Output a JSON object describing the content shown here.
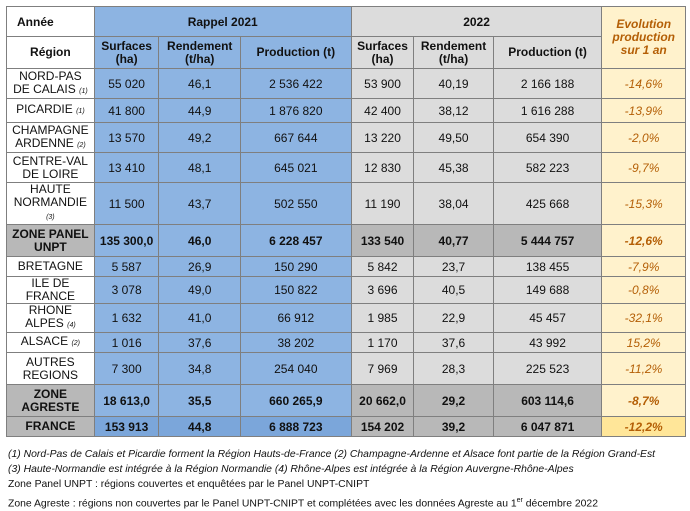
{
  "header": {
    "annee": "Année",
    "year_2021": "Rappel 2021",
    "year_2022": "2022",
    "evolution": "Evolution production sur 1 an",
    "region": "Région",
    "surfaces": "Surfaces (ha)",
    "rendement": "Rendement (t/ha)",
    "production": "Production (t)"
  },
  "rows": [
    {
      "region": "NORD-PAS DE CALAIS",
      "fn": "(1)",
      "s21": "55 020",
      "r21": "46,1",
      "p21": "2 536 422",
      "s22": "53 900",
      "r22": "40,19",
      "p22": "2 166 188",
      "evo": "-14,6%"
    },
    {
      "region": "PICARDIE",
      "fn": "(1)",
      "s21": "41 800",
      "r21": "44,9",
      "p21": "1 876 820",
      "s22": "42 400",
      "r22": "38,12",
      "p22": "1 616 288",
      "evo": "-13,9%"
    },
    {
      "region": "CHAMPAGNE ARDENNE",
      "fn": "(2)",
      "s21": "13 570",
      "r21": "49,2",
      "p21": "667 644",
      "s22": "13 220",
      "r22": "49,50",
      "p22": "654 390",
      "evo": "-2,0%"
    },
    {
      "region": "CENTRE-VAL DE LOIRE",
      "fn": "",
      "s21": "13 410",
      "r21": "48,1",
      "p21": "645 021",
      "s22": "12 830",
      "r22": "45,38",
      "p22": "582 223",
      "evo": "-9,7%"
    },
    {
      "region": "HAUTE NORMANDIE",
      "fn": "(3)",
      "s21": "11 500",
      "r21": "43,7",
      "p21": "502 550",
      "s22": "11 190",
      "r22": "38,04",
      "p22": "425 668",
      "evo": "-15,3%"
    },
    {
      "region": "ZONE PANEL UNPT",
      "fn": "",
      "s21": "135 300,0",
      "r21": "46,0",
      "p21": "6 228 457",
      "s22": "133 540",
      "r22": "40,77",
      "p22": "5 444 757",
      "evo": "-12,6%",
      "total": true
    },
    {
      "region": "BRETAGNE",
      "fn": "",
      "s21": "5 587",
      "r21": "26,9",
      "p21": "150 290",
      "s22": "5 842",
      "r22": "23,7",
      "p22": "138 455",
      "evo": "-7,9%"
    },
    {
      "region": "ILE DE FRANCE",
      "fn": "",
      "s21": "3 078",
      "r21": "49,0",
      "p21": "150 822",
      "s22": "3 696",
      "r22": "40,5",
      "p22": "149 688",
      "evo": "-0,8%"
    },
    {
      "region": "RHONE ALPES",
      "fn": "(4)",
      "s21": "1 632",
      "r21": "41,0",
      "p21": "66 912",
      "s22": "1 985",
      "r22": "22,9",
      "p22": "45 457",
      "evo": "-32,1%"
    },
    {
      "region": "ALSACE",
      "fn": "(2)",
      "s21": "1 016",
      "r21": "37,6",
      "p21": "38 202",
      "s22": "1 170",
      "r22": "37,6",
      "p22": "43 992",
      "evo": "15,2%"
    },
    {
      "region": "AUTRES REGIONS",
      "fn": "",
      "s21": "7 300",
      "r21": "34,8",
      "p21": "254 040",
      "s22": "7 969",
      "r22": "28,3",
      "p22": "225 523",
      "evo": "-11,2%"
    },
    {
      "region": "ZONE AGRESTE",
      "fn": "",
      "s21": "18 613,0",
      "r21": "35,5",
      "p21": "660 265,9",
      "s22": "20 662,0",
      "r22": "29,2",
      "p22": "603 114,6",
      "evo": "-8,7%",
      "total": true
    },
    {
      "region": "FRANCE",
      "fn": "",
      "s21": "153 913",
      "r21": "44,8",
      "p21": "6 888 723",
      "s22": "154 202",
      "r22": "39,2",
      "p22": "6 047 871",
      "evo": "-12,2%",
      "grand": true
    }
  ],
  "notes": {
    "line1": "(1) Nord-Pas de Calais et Picardie forment la Région Hauts-de-France (2) Champagne-Ardenne et Alsace font partie de la Région Grand-Est",
    "line2": "(3) Haute-Normandie est intégrée à la Région Normandie (4) Rhône-Alpes est intégrée à la Région Auvergne-Rhône-Alpes",
    "line3": "Zone Panel UNPT : régions couvertes et enquêtées par le Panel UNPT-CNIPT",
    "line4_a": "Zone Agreste : régions non couvertes par le Panel UNPT-CNIPT et complétées avec les données Agreste au 1",
    "line4_sup": "er",
    "line4_b": " décembre 2022"
  },
  "colors": {
    "blue": "#8db4e2",
    "gray": "#dcdcdc",
    "yellow": "#fff2cc",
    "evolution_text": "#b45f06"
  }
}
